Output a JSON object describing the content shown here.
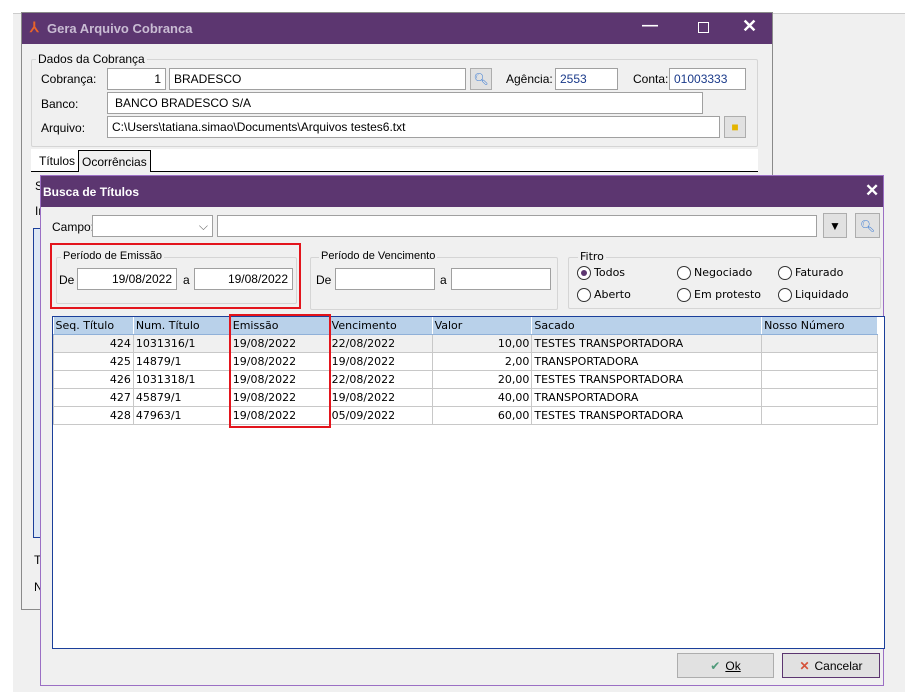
{
  "main_window": {
    "title": "Gera Arquivo Cobranca",
    "group_title": "Dados da Cobrança",
    "cobranca_label": "Cobrança:",
    "cobranca_code": "1",
    "cobranca_name": "BRADESCO",
    "agencia_label": "Agência:",
    "agencia": "2553",
    "conta_label": "Conta:",
    "conta": "01003333",
    "banco_label": "Banco:",
    "banco": "BANCO BRADESCO S/A",
    "arquivo_label": "Arquivo:",
    "arquivo": "C:\\Users\\tatiana.simao\\Documents\\Arquivos testes6.txt",
    "tabs": [
      {
        "label": "Títulos"
      },
      {
        "label": "Ocorrências"
      }
    ],
    "hidden_labels": [
      "S",
      "In",
      "Ti",
      "N"
    ]
  },
  "dialog": {
    "title": "Busca de Títulos",
    "campo_label": "Campo:",
    "campo_value": "",
    "search_value": "",
    "emissao": {
      "title": "Período de Emissão",
      "de_label": "De",
      "de": "19/08/2022",
      "a_label": "a",
      "a": "19/08/2022"
    },
    "vencimento": {
      "title": "Período de Vencimento",
      "de_label": "De",
      "de": "",
      "a_label": "a",
      "a": ""
    },
    "filtro": {
      "title": "Fitro",
      "options": [
        "Todos",
        "Negociado",
        "Faturado",
        "Aberto",
        "Em protesto",
        "Liquidado"
      ],
      "selected": "Todos"
    },
    "table": {
      "columns": [
        "Seq. Título",
        "Num. Título",
        "Emissão",
        "Vencimento",
        "Valor",
        "Sacado",
        "Nosso Número"
      ],
      "rows": [
        [
          "424",
          "1031316/1",
          "19/08/2022",
          "22/08/2022",
          "10,00",
          "TESTES TRANSPORTADORA",
          ""
        ],
        [
          "425",
          "14879/1",
          "19/08/2022",
          "19/08/2022",
          "2,00",
          "TRANSPORTADORA",
          ""
        ],
        [
          "426",
          "1031318/1",
          "19/08/2022",
          "22/08/2022",
          "20,00",
          "TESTES TRANSPORTADORA",
          ""
        ],
        [
          "427",
          "45879/1",
          "19/08/2022",
          "19/08/2022",
          "40,00",
          "TRANSPORTADORA",
          ""
        ],
        [
          "428",
          "47963/1",
          "19/08/2022",
          "05/09/2022",
          "60,00",
          "TESTES TRANSPORTADORA",
          ""
        ]
      ]
    },
    "ok_label": "Ok",
    "cancel_label": "Cancelar"
  },
  "colors": {
    "titlebar": "#5c3670",
    "highlight": "#e3141c",
    "grid_header": "#b9d1ea"
  }
}
